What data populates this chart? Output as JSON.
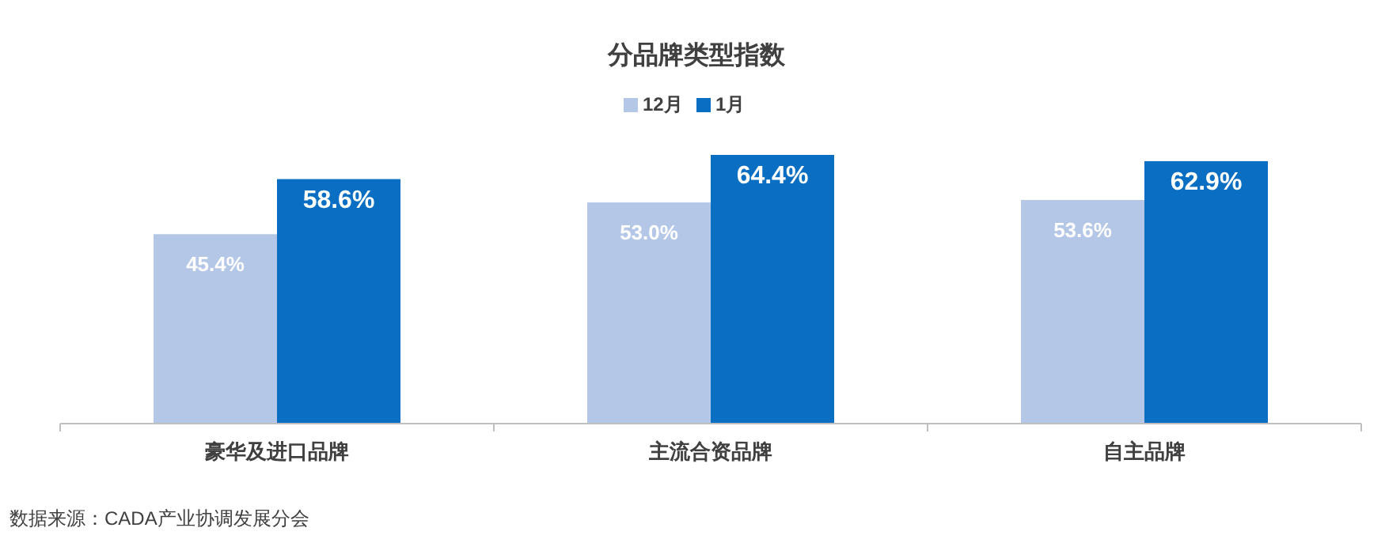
{
  "chart_data": {
    "type": "bar",
    "title": "分品牌类型指数",
    "categories": [
      "豪华及进口品牌",
      "主流合资品牌",
      "自主品牌"
    ],
    "series": [
      {
        "name": "12月",
        "color": "#b4c7e7",
        "values": [
          45.4,
          53.0,
          53.6
        ],
        "value_labels": [
          "45.4%",
          "53.0%",
          "53.6%"
        ]
      },
      {
        "name": "1月",
        "color": "#0a6fc2",
        "values": [
          58.6,
          64.4,
          62.9
        ],
        "value_labels": [
          "58.6%",
          "64.4%",
          "62.9%"
        ]
      }
    ],
    "legend": "top",
    "annotations": [
      "数据来源：CADA产业协调发展分会"
    ]
  }
}
